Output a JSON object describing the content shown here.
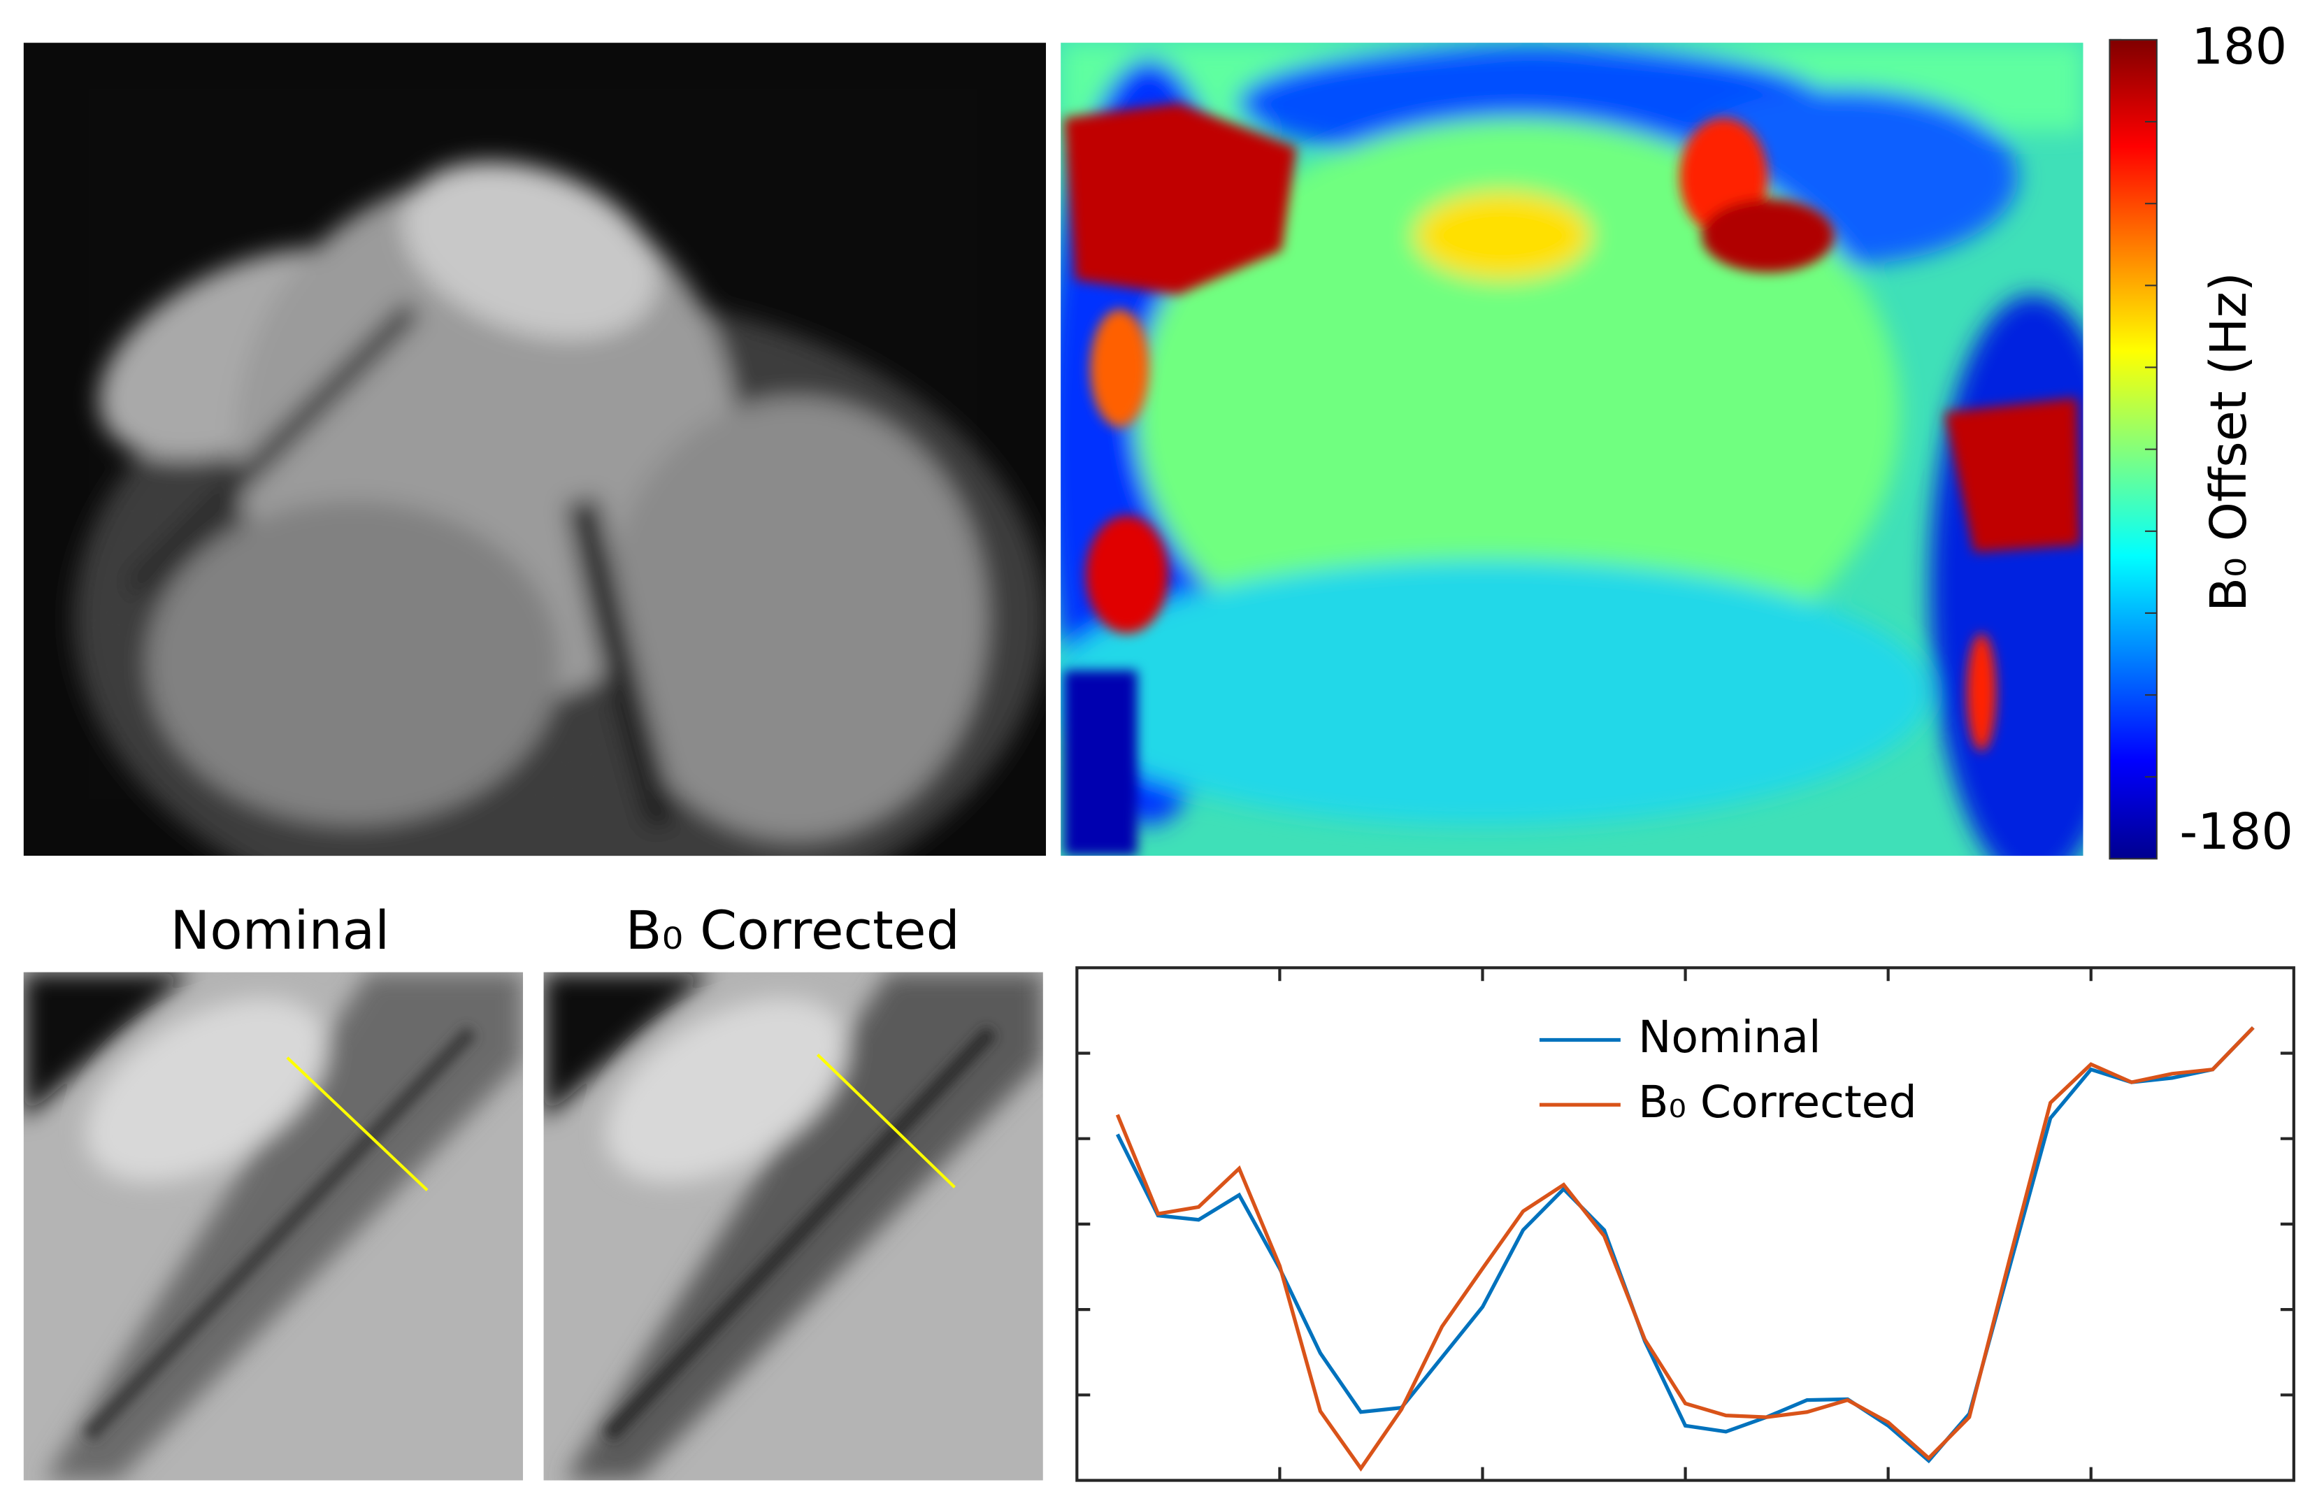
{
  "figure": {
    "colorbar": {
      "label": "B₀ Offset (Hz)",
      "clim": [
        -180,
        180
      ],
      "ticks": [
        180,
        -180
      ]
    },
    "panel_titles": [
      "Nominal",
      "B₀ Corrected"
    ]
  },
  "chart_data": {
    "type": "line",
    "x": [
      1,
      2,
      3,
      4,
      5,
      6,
      7,
      8,
      9,
      10,
      11,
      12,
      13,
      14,
      15,
      16,
      17,
      18,
      19,
      20,
      21,
      22,
      23,
      24,
      25,
      26,
      27,
      28,
      29
    ],
    "series": [
      {
        "name": "Nominal",
        "color": "#0072bd",
        "values": [
          4.05,
          3.1,
          3.05,
          3.34,
          2.48,
          1.49,
          0.8,
          0.85,
          1.44,
          2.03,
          2.93,
          3.41,
          2.93,
          1.63,
          0.64,
          0.57,
          0.74,
          0.94,
          0.95,
          0.64,
          0.23,
          0.78,
          2.51,
          4.24,
          4.81,
          4.66,
          4.71,
          4.81,
          5.3
        ]
      },
      {
        "name": "B₀ Corrected",
        "color": "#d95319",
        "values": [
          4.28,
          3.12,
          3.2,
          3.65,
          2.51,
          0.81,
          0.14,
          0.83,
          1.8,
          2.48,
          3.15,
          3.46,
          2.86,
          1.65,
          0.9,
          0.76,
          0.74,
          0.8,
          0.94,
          0.68,
          0.26,
          0.74,
          2.6,
          4.42,
          4.87,
          4.66,
          4.76,
          4.81,
          5.3
        ]
      }
    ],
    "xlim": [
      0,
      30
    ],
    "ylim": [
      0,
      6
    ],
    "xticks": [
      5,
      10,
      15,
      20,
      25
    ],
    "yticks": [
      1,
      2,
      3,
      4,
      5
    ]
  }
}
